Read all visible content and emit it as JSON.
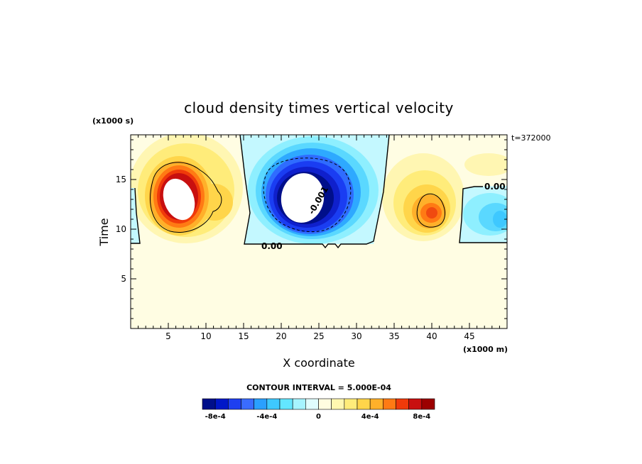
{
  "chart_data": {
    "type": "heatmap",
    "title": "cloud density times vertical velocity",
    "xlabel": "X coordinate",
    "ylabel": "Time",
    "x_units": "(x1000 m)",
    "y_units": "(x1000 s)",
    "annotation": "t=372000",
    "xlim": [
      0,
      50
    ],
    "ylim": [
      0,
      19.5
    ],
    "xticks": [
      5,
      10,
      15,
      20,
      25,
      30,
      35,
      40,
      45
    ],
    "yticks": [
      5,
      10,
      15
    ],
    "contour_interval_text": "CONTOUR INTERVAL = 5.000E-04",
    "contour_labels": [
      "0.00",
      "-0.001",
      "0.00"
    ],
    "colorbar": {
      "colors": [
        "#000f8a",
        "#0017c8",
        "#1e3ff0",
        "#3a6cff",
        "#2aa0ff",
        "#3ec8ff",
        "#63e6ff",
        "#a6f4ff",
        "#e0fdfd",
        "#fffde0",
        "#fff7b0",
        "#ffec7a",
        "#ffd54a",
        "#ffb02a",
        "#ff7a14",
        "#f03a0a",
        "#c80f0f",
        "#9c0000"
      ],
      "tick_labels": [
        "-8e-4",
        "-4e-4",
        "0",
        "4e-4",
        "8e-4"
      ],
      "tick_values": [
        -0.0008,
        -0.0004,
        0,
        0.0004,
        0.0008
      ]
    },
    "features": [
      {
        "kind": "updraft",
        "center": [
          6.3,
          13.7
        ],
        "peak": 0.0011
      },
      {
        "kind": "downdraft",
        "center": [
          23.0,
          14.0
        ],
        "peak": -0.0011
      },
      {
        "kind": "updraft",
        "center": [
          39.5,
          12.5
        ],
        "peak": 0.0007
      },
      {
        "kind": "downdraft",
        "center": [
          49.0,
          11.5
        ],
        "peak": -0.0004
      }
    ]
  }
}
